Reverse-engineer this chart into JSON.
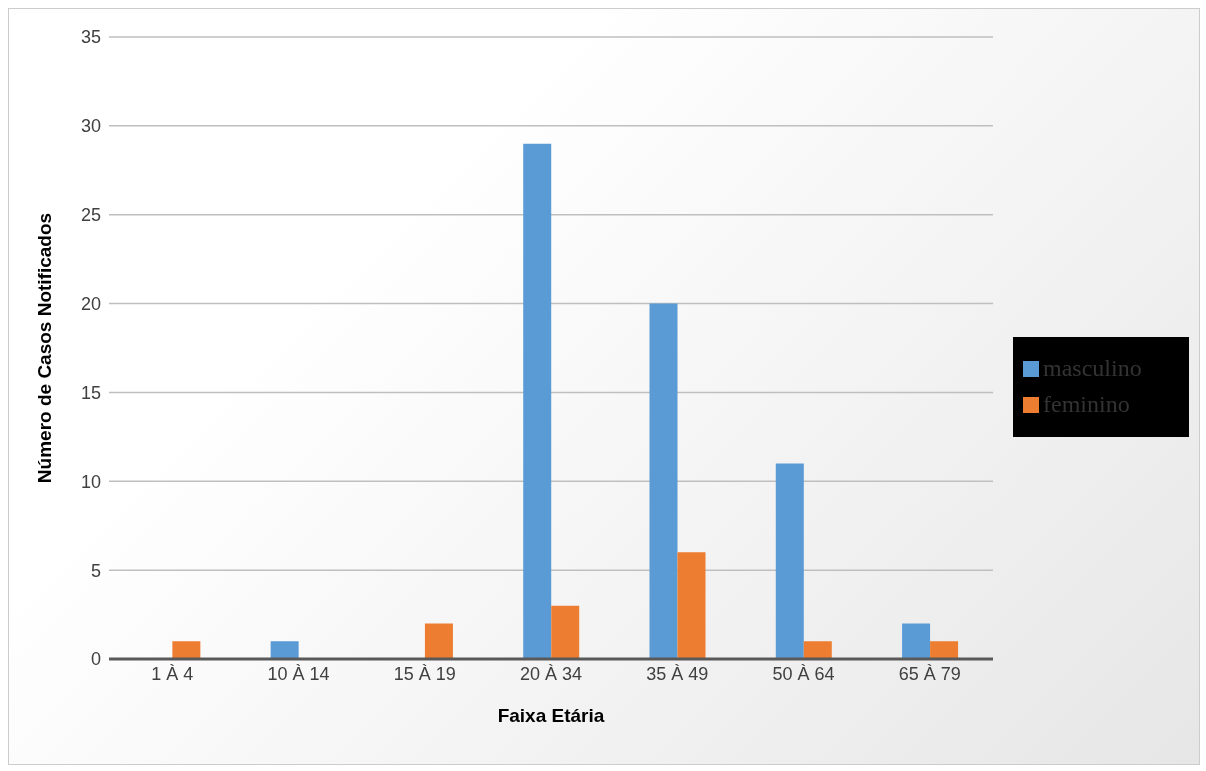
{
  "chart_data": {
    "type": "bar",
    "xlabel": "Faixa Etária",
    "ylabel": "Número de Casos Notificados",
    "categories": [
      "1 À 4",
      "10 À 14",
      "15 À 19",
      "20 À 34",
      "35 À 49",
      "50 À 64",
      "65 À 79"
    ],
    "series": [
      {
        "name": "masculino",
        "color": "#5b9bd5",
        "values": [
          0,
          1,
          0,
          29,
          20,
          11,
          2
        ]
      },
      {
        "name": "feminino",
        "color": "#ed7d31",
        "values": [
          1,
          0,
          2,
          3,
          6,
          1,
          1
        ]
      }
    ],
    "ylim": [
      0,
      35
    ],
    "yticks": [
      0,
      5,
      10,
      15,
      20,
      25,
      30,
      35
    ],
    "grid": "y",
    "legend": "right"
  }
}
